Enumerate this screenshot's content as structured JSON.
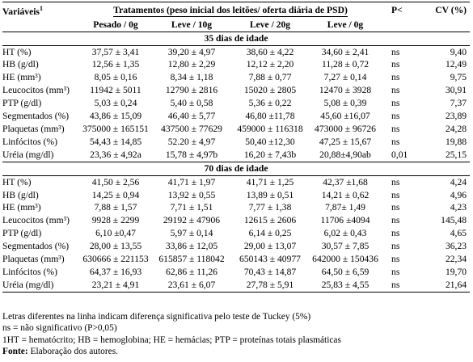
{
  "header": {
    "variables_label": "Variáveis",
    "variables_sup": "1",
    "treatments_title": "Tratamentos (peso inicial dos leitões/ oferta diária de PSD)",
    "p_label": "P<",
    "cv_label": "CV (%)",
    "columns": [
      "Pesado / 0g",
      "Leve / 10g",
      "Leve / 20g",
      "Leve / 0g"
    ]
  },
  "sections": [
    {
      "title": "35 dias de idade",
      "rows": [
        {
          "variable": "HT (%)",
          "values": [
            "37,57 ± 3,41",
            "39,20 ± 4,97",
            "38,60 ± 4,22",
            "34,60 ± 2,41"
          ],
          "p": "ns",
          "cv": "9,40"
        },
        {
          "variable": "HB (g/dl)",
          "values": [
            "12,56 ± 1,35",
            "12,80 ± 2,29",
            "12,12 ± 2,20",
            "11,28 ± 0,72"
          ],
          "p": "ns",
          "cv": "12,49"
        },
        {
          "variable": "HE (mm³)",
          "values": [
            "8,05 ± 0,16",
            "8,34 ± 1,18",
            "7,88 ± 0,77",
            "7,27 ± 0,14"
          ],
          "p": "ns",
          "cv": "9,75"
        },
        {
          "variable": "Leucocitos (mm³)",
          "values": [
            "11942 ± 5011",
            "12790 ± 2816",
            "15020 ± 2805",
            "12470 ± 3928"
          ],
          "p": "ns",
          "cv": "30,91"
        },
        {
          "variable": "PTP (g/dl)",
          "values": [
            "5,03 ± 0,24",
            "5,40 ± 0,58",
            "5,36 ± 0,22",
            "5,08 ± 0,39"
          ],
          "p": "ns",
          "cv": "7,37"
        },
        {
          "variable": "Segmentados (%)",
          "values": [
            "43,86 ± 15,09",
            "46,40 ± 5,77",
            "46,80 ±11,78",
            "45,60 ±16,07"
          ],
          "p": "ns",
          "cv": "23,89"
        },
        {
          "variable": "Plaquetas (mm³)",
          "values": [
            "375000 ± 165151",
            "437500 ± 77629",
            "459000 ± 116318",
            "473000 ± 96726"
          ],
          "p": "ns",
          "cv": "24,28"
        },
        {
          "variable": "Linfócitos (%)",
          "values": [
            "54,43 ± 14,85",
            "52.20 ± 4,97",
            "50,40 ±12,30",
            "47,25 ± 15,67"
          ],
          "p": "ns",
          "cv": "19,88"
        },
        {
          "variable": "Uréia (mg/dl)",
          "values": [
            "23,36 ± 4,92a",
            "15,78 ± 4,97b",
            "16,20 ± 7,43b",
            "20,88±4,90ab"
          ],
          "p": "0,01",
          "cv": "25,15"
        }
      ]
    },
    {
      "title": "70 dias de idade",
      "rows": [
        {
          "variable": "HT (%)",
          "values": [
            "41,50 ± 2,56",
            "41,71 ± 1,97",
            "41,71 ± 1,25",
            "42,37 ±1,68"
          ],
          "p": "ns",
          "cv": "4,24"
        },
        {
          "variable": "HB (g/dl)",
          "values": [
            "14,25 ± 0,94",
            "13,92 ± 0,55",
            "13,89 ± 0,51",
            "14,21 ± 0,62"
          ],
          "p": "ns",
          "cv": "4,96"
        },
        {
          "variable": "HE (mm³)",
          "values": [
            "7,88 ± 1,57",
            "7,71 ± 1,51",
            "7,77 ± 1,38",
            "7,87± 1,49"
          ],
          "p": "ns",
          "cv": "4,23"
        },
        {
          "variable": "Leucocitos (mm³)",
          "values": [
            "9928 ± 2299",
            "29192 ± 47906",
            "12615 ± 2606",
            "11706 ±4094"
          ],
          "p": "ns",
          "cv": "145,48"
        },
        {
          "variable": "PTP (g/dl)",
          "values": [
            "6,10 ±0,47",
            "5,97 ± 0,14",
            "6,14 ± 0,25",
            "6,02 ± 0,43"
          ],
          "p": "ns",
          "cv": "4,65"
        },
        {
          "variable": "Segmentados (%)",
          "values": [
            "28,00 ± 13,55",
            "33,86 ± 12,05",
            "29,00 ± 13,07",
            "30,57 ± 7,85"
          ],
          "p": "ns",
          "cv": "36,23"
        },
        {
          "variable": "Plaquetas (mm³)",
          "values": [
            "630666 ± 221153",
            "615857 ± 118042",
            "650143 ± 40977",
            "642000 ± 150436"
          ],
          "p": "ns",
          "cv": "22,34"
        },
        {
          "variable": "Linfócitos (%)",
          "values": [
            "64,37 ± 16,93",
            "62,86 ± 11,26",
            "70,43 ± 14,87",
            "64,50 ± 6,59"
          ],
          "p": "ns",
          "cv": "19,70"
        },
        {
          "variable": "Uréia (mg/dl)",
          "values": [
            "23,21 ± 4,91",
            "23,61 ± 6,07",
            "27,78 ± 5,91",
            "25,83 ± 4,55"
          ],
          "p": "ns",
          "cv": "21,64"
        }
      ]
    }
  ],
  "notes": {
    "line1": "Letras diferentes na linha indicam diferença significativa pelo teste de Tuckey (5%)",
    "line2": "ns = não significativo (P>0,05)",
    "line3": "1HT = hematócrito; HB = hemoglobina; HE = hemácias; PTP = proteínas totais plasmáticas",
    "source_label": "Fonte:",
    "source_text": " Elaboração dos autores."
  }
}
